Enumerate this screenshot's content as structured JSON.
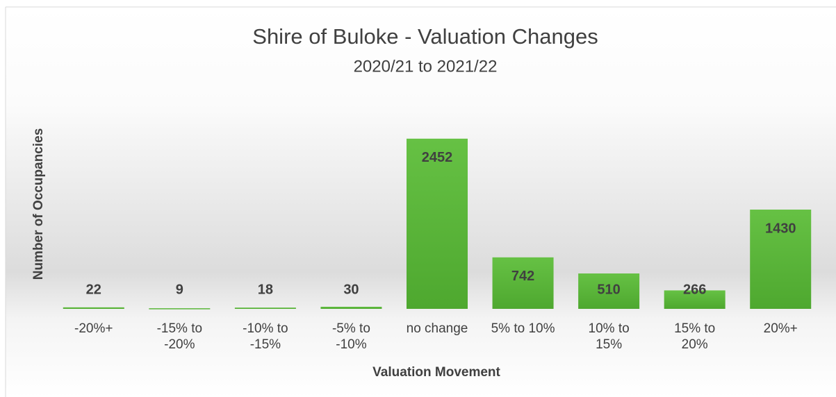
{
  "chart_data": {
    "type": "bar",
    "title": "Shire of Buloke - Valuation Changes",
    "subtitle": "2020/21 to 2021/22",
    "x_label": "Valuation Movement",
    "y_label": "Number of Occupancies",
    "categories": [
      "-20%+",
      "-15% to -20%",
      "-10% to -15%",
      "-5% to -10%",
      "no change",
      "5% to 10%",
      "10% to 15%",
      "15% to 20%",
      "20%+"
    ],
    "values": [
      22,
      9,
      18,
      30,
      2452,
      742,
      510,
      266,
      1430
    ],
    "color": "#5cb83c",
    "ylim": [
      0,
      3000
    ]
  }
}
